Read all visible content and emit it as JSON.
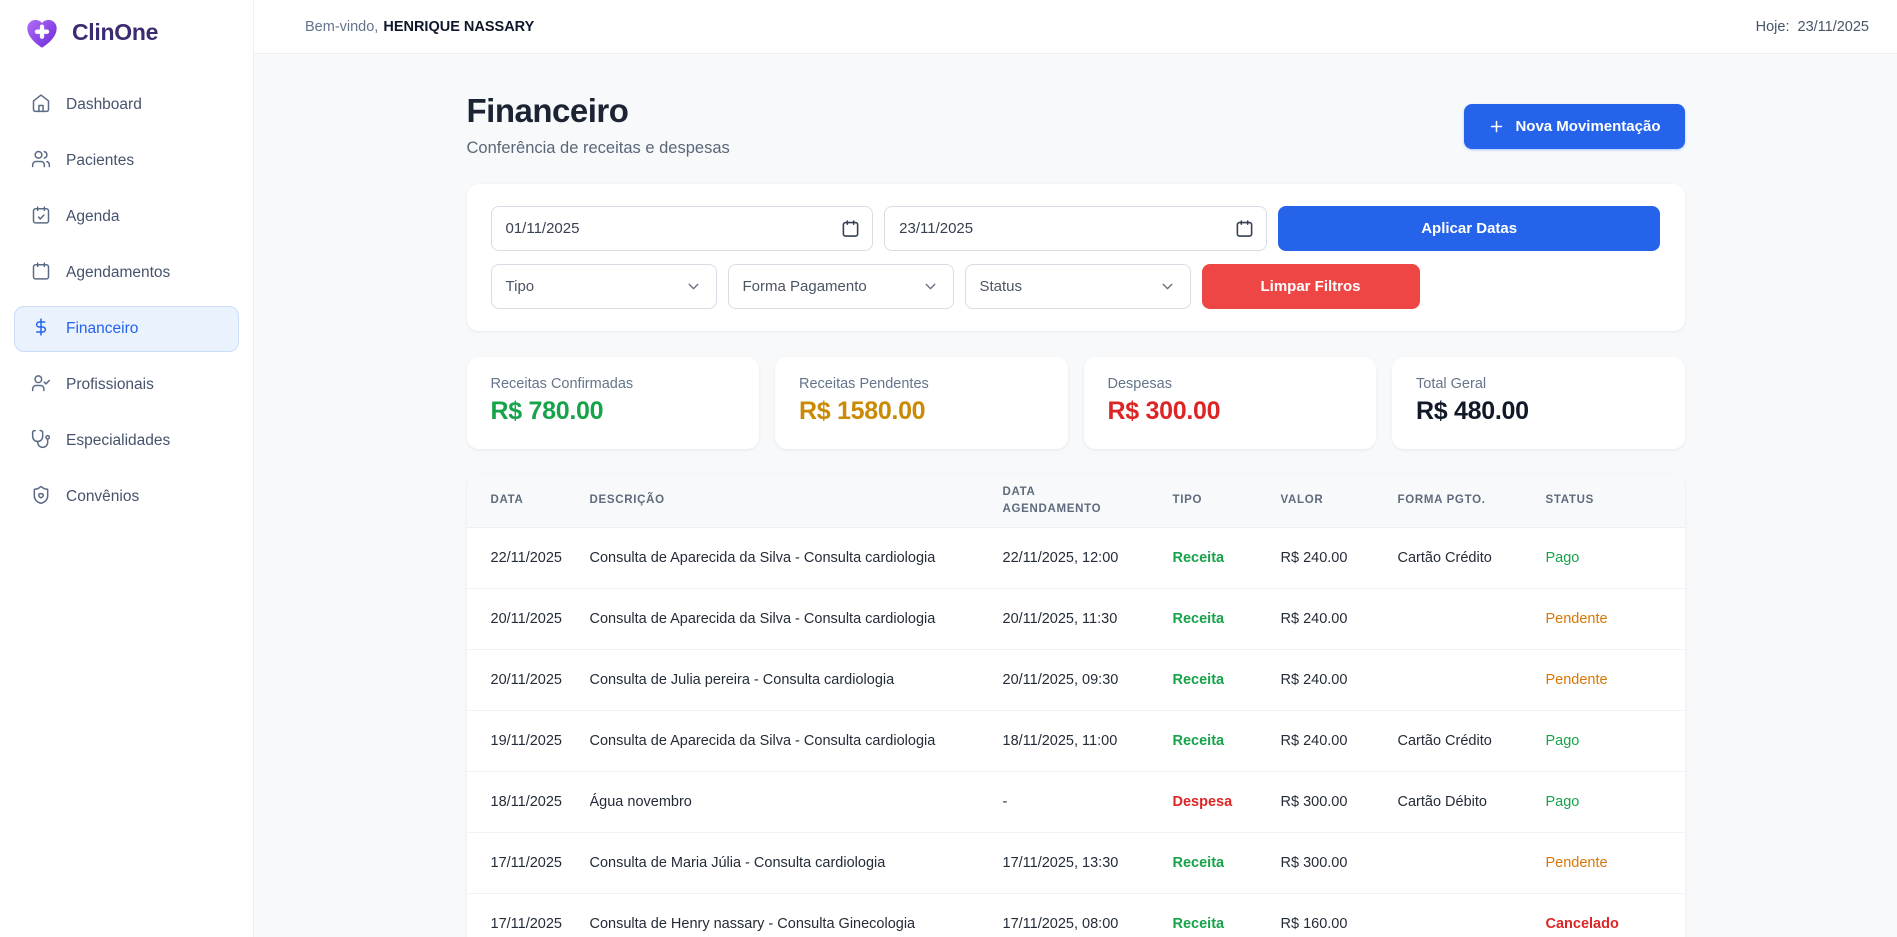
{
  "brand": {
    "name": "ClinOne",
    "logo_icon": "heart-cross-icon"
  },
  "topbar": {
    "welcome_prefix": "Bem-vindo,",
    "user_name": "HENRIQUE NASSARY",
    "today_label": "Hoje:",
    "today_date": "23/11/2025"
  },
  "sidebar": {
    "items": [
      {
        "label": "Dashboard",
        "icon": "home-icon",
        "active": false
      },
      {
        "label": "Pacientes",
        "icon": "users-icon",
        "active": false
      },
      {
        "label": "Agenda",
        "icon": "calendar-check-icon",
        "active": false
      },
      {
        "label": "Agendamentos",
        "icon": "calendar-icon",
        "active": false
      },
      {
        "label": "Financeiro",
        "icon": "dollar-icon",
        "active": true
      },
      {
        "label": "Profissionais",
        "icon": "user-check-icon",
        "active": false
      },
      {
        "label": "Especialidades",
        "icon": "stethoscope-icon",
        "active": false
      },
      {
        "label": "Convênios",
        "icon": "shield-heart-icon",
        "active": false
      }
    ]
  },
  "page": {
    "title": "Financeiro",
    "subtitle": "Conferência de receitas e despesas",
    "new_movement_label": "Nova Movimentação"
  },
  "filters": {
    "date_from": "01/11/2025",
    "date_to": "23/11/2025",
    "apply_label": "Aplicar Datas",
    "selects": [
      "Tipo",
      "Forma Pagamento",
      "Status"
    ],
    "clear_label": "Limpar Filtros"
  },
  "summary_cards": [
    {
      "label": "Receitas Confirmadas",
      "value": "R$ 780.00",
      "color": "#16a34a"
    },
    {
      "label": "Receitas Pendentes",
      "value": "R$ 1580.00",
      "color": "#ca8a04"
    },
    {
      "label": "Despesas",
      "value": "R$ 300.00",
      "color": "#dc2626"
    },
    {
      "label": "Total Geral",
      "value": "R$ 480.00",
      "color": "#111827"
    }
  ],
  "table": {
    "columns": [
      "DATA",
      "DESCRIÇÃO",
      "DATA AGENDAMENTO",
      "TIPO",
      "VALOR",
      "FORMA PGTO.",
      "STATUS"
    ],
    "rows": [
      {
        "date": "22/11/2025",
        "description": "Consulta de Aparecida da Silva - Consulta cardiologia",
        "schedule": "22/11/2025, 12:00",
        "type": "Receita",
        "type_color": "#16a34a",
        "value": "R$ 240.00",
        "payment": "Cartão Crédito",
        "status": "Pago",
        "status_color": "#16a34a",
        "status_bold": false
      },
      {
        "date": "20/11/2025",
        "description": "Consulta de Aparecida da Silva - Consulta cardiologia",
        "schedule": "20/11/2025, 11:30",
        "type": "Receita",
        "type_color": "#16a34a",
        "value": "R$ 240.00",
        "payment": "",
        "status": "Pendente",
        "status_color": "#d97706",
        "status_bold": false
      },
      {
        "date": "20/11/2025",
        "description": "Consulta de Julia pereira - Consulta cardiologia",
        "schedule": "20/11/2025, 09:30",
        "type": "Receita",
        "type_color": "#16a34a",
        "value": "R$ 240.00",
        "payment": "",
        "status": "Pendente",
        "status_color": "#d97706",
        "status_bold": false
      },
      {
        "date": "19/11/2025",
        "description": "Consulta de Aparecida da Silva - Consulta cardiologia",
        "schedule": "18/11/2025, 11:00",
        "type": "Receita",
        "type_color": "#16a34a",
        "value": "R$ 240.00",
        "payment": "Cartão Crédito",
        "status": "Pago",
        "status_color": "#16a34a",
        "status_bold": false
      },
      {
        "date": "18/11/2025",
        "description": "Água novembro",
        "schedule": "-",
        "type": "Despesa",
        "type_color": "#dc2626",
        "value": "R$ 300.00",
        "payment": "Cartão Débito",
        "status": "Pago",
        "status_color": "#16a34a",
        "status_bold": false
      },
      {
        "date": "17/11/2025",
        "description": "Consulta de Maria Júlia - Consulta cardiologia",
        "schedule": "17/11/2025, 13:30",
        "type": "Receita",
        "type_color": "#16a34a",
        "value": "R$ 300.00",
        "payment": "",
        "status": "Pendente",
        "status_color": "#d97706",
        "status_bold": false
      },
      {
        "date": "17/11/2025",
        "description": "Consulta de Henry nassary - Consulta Ginecologia",
        "schedule": "17/11/2025, 08:00",
        "type": "Receita",
        "type_color": "#16a34a",
        "value": "R$ 160.00",
        "payment": "",
        "status": "Cancelado",
        "status_color": "#dc2626",
        "status_bold": true
      }
    ]
  },
  "colors": {
    "accent_blue": "#2563eb",
    "danger_red": "#ee4545",
    "success_green": "#16a34a",
    "warning_gold": "#ca8a04",
    "brand_purple": "#7c3aed"
  }
}
